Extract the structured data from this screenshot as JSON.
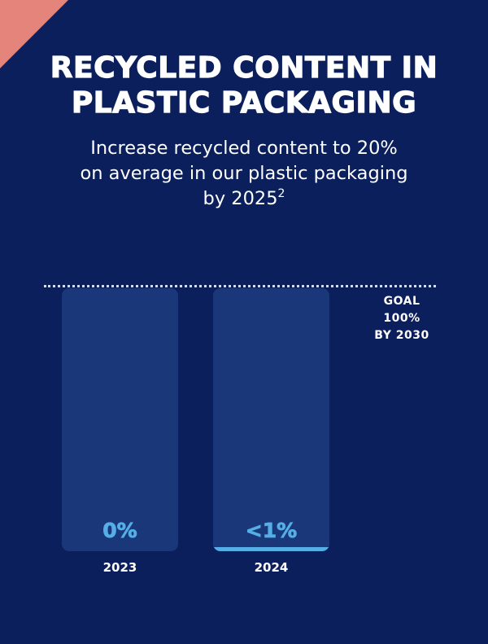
{
  "title_line1": "RECYCLED CONTENT IN",
  "title_line2": "PLASTIC PACKAGING",
  "subtitle_line1": "Increase recycled content to 20%",
  "subtitle_line2": "on average in our plastic packaging",
  "subtitle_line3": "by 2025",
  "subtitle_footnote": "2",
  "goal": {
    "line1": "GOAL",
    "line2": "100%",
    "line3": "BY 2030"
  },
  "colors": {
    "background": "#0b1f5c",
    "bar_track": "#1a3879",
    "bar_fill": "#55aee6",
    "corner_accent": "#e5847a"
  },
  "chart_data": {
    "type": "bar",
    "categories": [
      "2023",
      "2024"
    ],
    "values": [
      0,
      0.8
    ],
    "value_labels": [
      "0%",
      "<1%"
    ],
    "ylim": [
      0,
      100
    ],
    "goal_value": 100,
    "grid": false
  }
}
